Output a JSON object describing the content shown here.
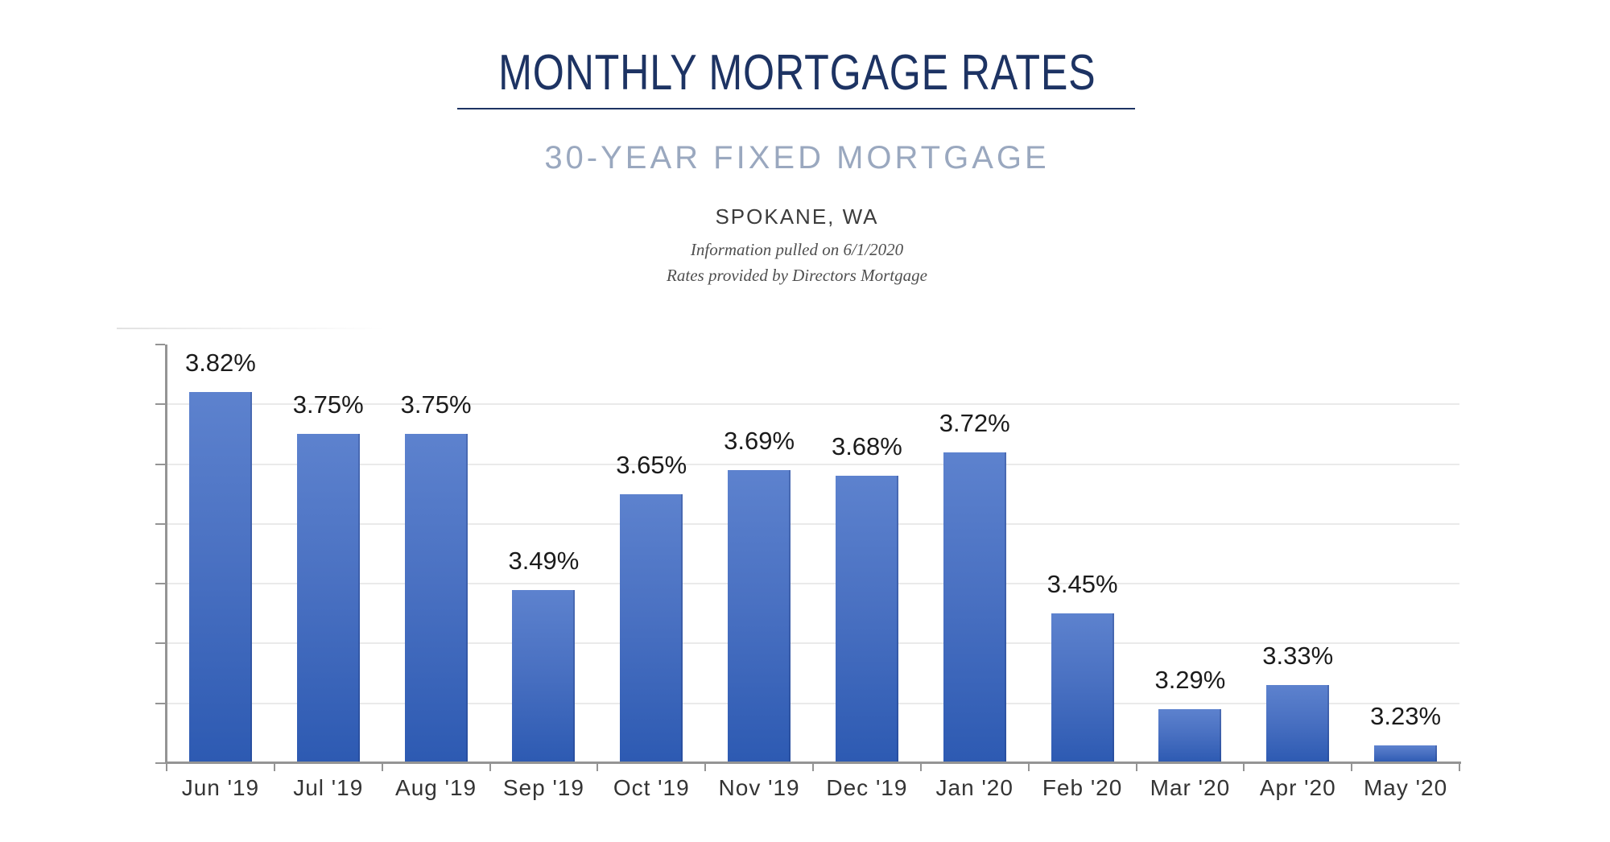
{
  "header": {
    "title": "MONTHLY MORTGAGE RATES",
    "subtitle": "30-YEAR FIXED MORTGAGE",
    "location": "SPOKANE, WA",
    "note_line1": "Information pulled on 6/1/2020",
    "note_line2": "Rates provided by Directors Mortgage"
  },
  "colors": {
    "title_navy": "#1d3363",
    "subtitle_blue_gray": "#9aa8bf",
    "location_gray": "#3c3c3c",
    "note_gray": "#4f4f4f",
    "bar_top": "#5d82ce",
    "bar_bottom": "#2d5ab2",
    "gridline_gray": "#eaeaea",
    "axis_gray": "#949494",
    "value_label_black": "#1b1b1b",
    "x_label_gray": "#343434"
  },
  "chart_data": {
    "type": "bar",
    "title": "MONTHLY MORTGAGE RATES",
    "subtitle": "30-YEAR FIXED MORTGAGE",
    "categories": [
      "Jun '19",
      "Jul '19",
      "Aug '19",
      "Sep '19",
      "Oct '19",
      "Nov '19",
      "Dec '19",
      "Jan '20",
      "Feb '20",
      "Mar '20",
      "Apr '20",
      "May '20"
    ],
    "values": [
      3.82,
      3.75,
      3.75,
      3.49,
      3.65,
      3.69,
      3.68,
      3.72,
      3.45,
      3.29,
      3.33,
      3.23
    ],
    "value_labels": [
      "3.82%",
      "3.75%",
      "3.75%",
      "3.49%",
      "3.65%",
      "3.69%",
      "3.68%",
      "3.72%",
      "3.45%",
      "3.29%",
      "3.33%",
      "3.23%"
    ],
    "value_suffix": "%",
    "xlabel": "",
    "ylabel": "",
    "ylim": [
      3.2,
      3.9
    ],
    "gridline_step": 0.1,
    "grid": true,
    "legend_position": "none",
    "y_tick_labels_visible": false,
    "data_labels_visible": true
  }
}
